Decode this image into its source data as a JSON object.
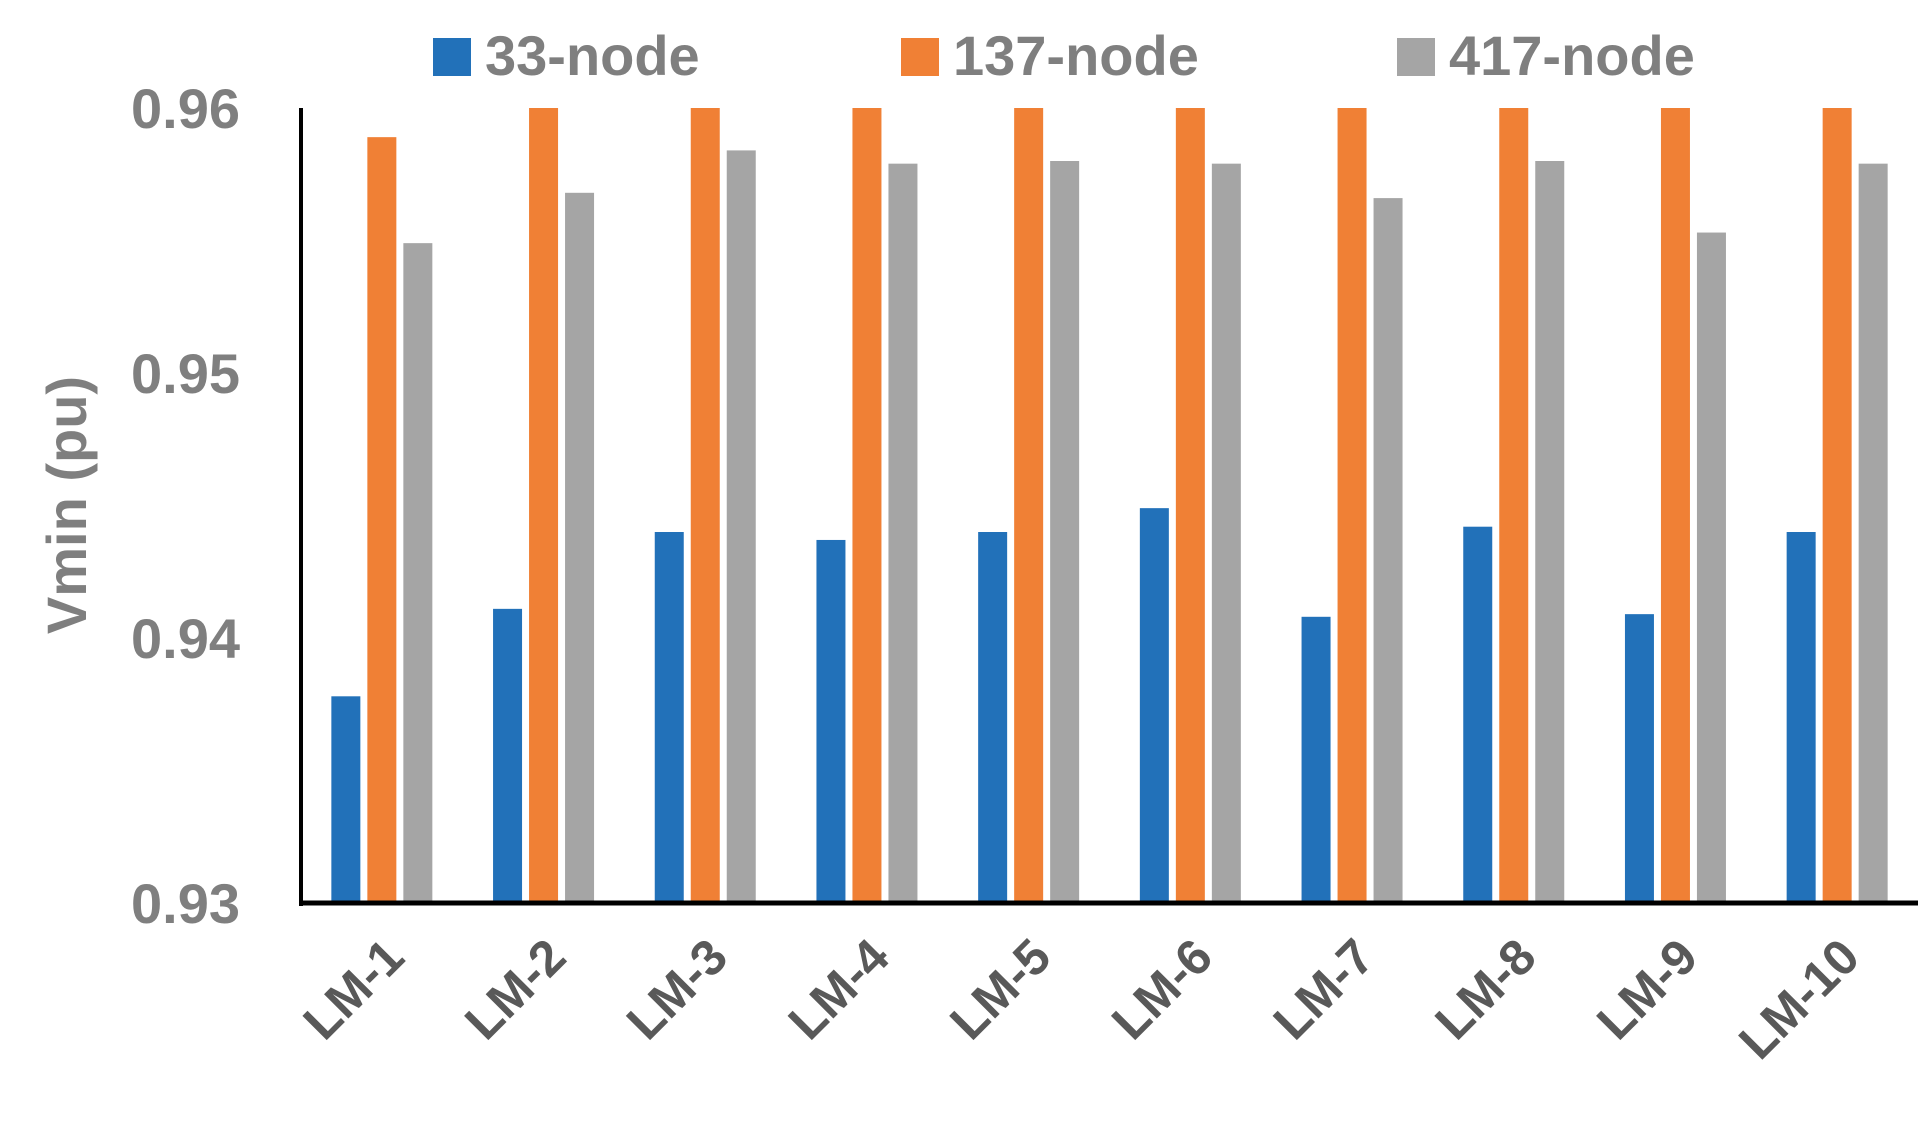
{
  "chart_data": {
    "type": "bar",
    "title": "",
    "xlabel": "",
    "ylabel": "Vmin (pu)",
    "ylim": [
      0.93,
      0.96
    ],
    "yticks": [
      "0.93",
      "0.94",
      "0.95",
      "0.96"
    ],
    "grid": false,
    "legend_position": "top",
    "categories": [
      "LM-1",
      "LM-2",
      "LM-3",
      "LM-4",
      "LM-5",
      "LM-6",
      "LM-7",
      "LM-8",
      "LM-9",
      "LM-10"
    ],
    "series": [
      {
        "name": "33-node",
        "color": "#2271b9",
        "values": [
          0.9378,
          0.9411,
          0.944,
          0.9437,
          0.944,
          0.9449,
          0.9408,
          0.9442,
          0.9409,
          0.944
        ]
      },
      {
        "name": "137-node",
        "color": "#f08035",
        "values": [
          0.9589,
          0.96,
          0.96,
          0.96,
          0.96,
          0.96,
          0.96,
          0.96,
          0.96,
          0.96
        ]
      },
      {
        "name": "417-node",
        "color": "#a5a5a5",
        "values": [
          0.9549,
          0.9568,
          0.9584,
          0.9579,
          0.958,
          0.9579,
          0.9566,
          0.958,
          0.9553,
          0.9579
        ]
      }
    ]
  }
}
